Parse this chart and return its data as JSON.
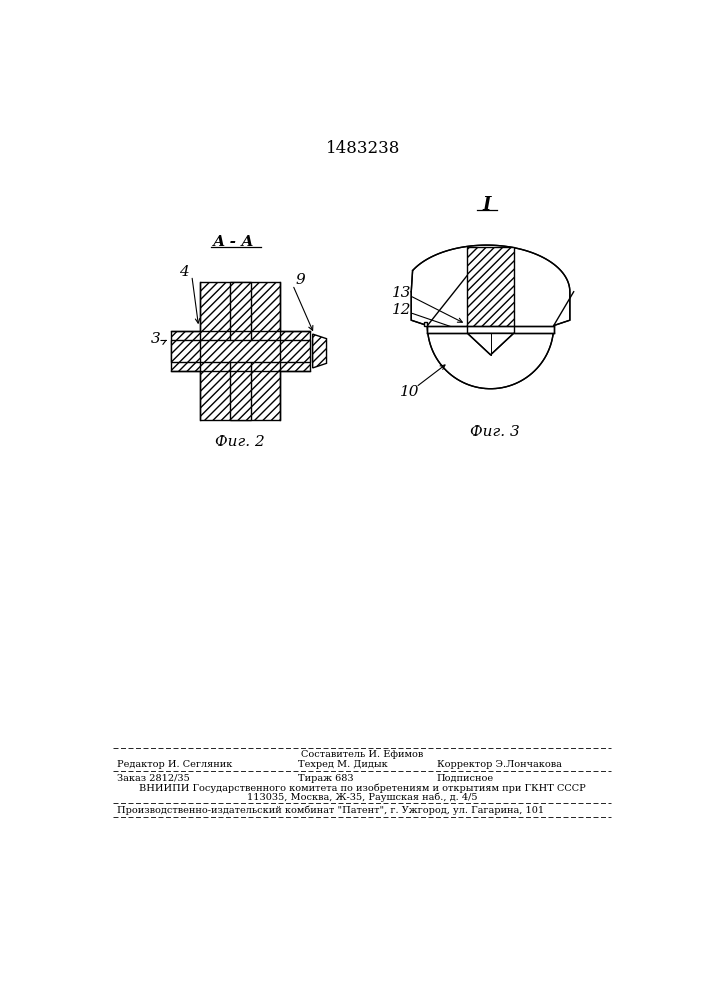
{
  "patent_number": "1483238",
  "fig2_label": "А - А",
  "fig2_caption": "Фиг. 2",
  "fig3_label": "I",
  "fig3_caption": "Фиг. 3",
  "label_3": "3",
  "label_4": "4",
  "label_9": "9",
  "label_10": "10",
  "label_12": "12",
  "label_13": "13",
  "line_color": "#000000",
  "background_color": "#ffffff",
  "footer_line1": "Составитель И. Ефимов",
  "footer_line2_left": "Редактор И. Сегляник",
  "footer_line2_mid": "Техред М. Дидык",
  "footer_line2_right": "Корректор Э.Лончакова",
  "footer_line3_left": "Заказ 2812/35",
  "footer_line3_mid": "Тираж 683",
  "footer_line3_right": "Подписное",
  "footer_line4": "ВНИИПИ Государственного комитета по изобретениям и открытиям при ГКНТ СССР",
  "footer_line5": "113035, Москва, Ж-35, Раушская наб., д. 4/5",
  "footer_line6": "Производственно-издательский комбинат \"Патент\", г. Ужгород, ул. Гагарина, 101"
}
